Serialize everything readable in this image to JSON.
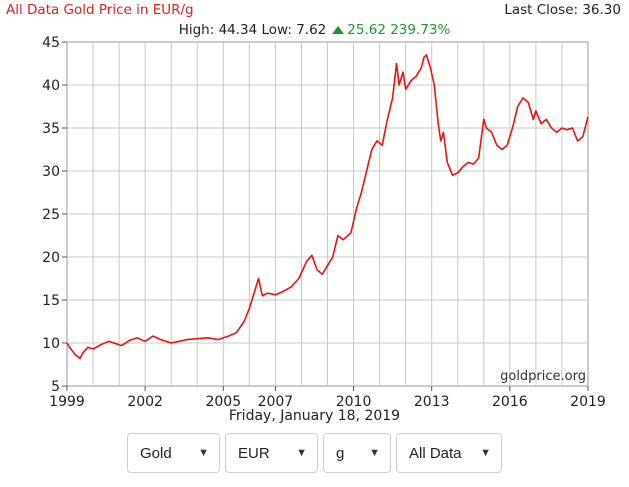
{
  "header": {
    "title": "All Data Gold Price in EUR/g",
    "last_close": "Last Close: 36.30",
    "high_low": "High: 44.34 Low: 7.62",
    "change": "25.62 239.73%"
  },
  "date_caption": "Friday, January 18, 2019",
  "selects": [
    {
      "value": "Gold"
    },
    {
      "value": "EUR"
    },
    {
      "value": "g"
    },
    {
      "value": "All Data"
    }
  ],
  "colors": {
    "line": "#ee1111",
    "title": "#e02020",
    "up": "#1a9a2a",
    "grid": "#c8c8c8"
  },
  "chart_data": {
    "type": "line",
    "title": "All Data Gold Price in EUR/g",
    "watermark": "goldprice.org",
    "xlim": [
      1999,
      2019
    ],
    "ylim": [
      5,
      45
    ],
    "x_ticks": [
      1999,
      2002,
      2005,
      2007,
      2010,
      2013,
      2016,
      2019
    ],
    "y_ticks": [
      5,
      10,
      15,
      20,
      25,
      30,
      35,
      40,
      45
    ],
    "grid": true,
    "series": [
      {
        "x": [
          1999.0,
          1999.1,
          1999.3,
          1999.5,
          1999.6,
          1999.8,
          2000.0,
          2000.3,
          2000.6,
          2000.9,
          2001.1,
          2001.4,
          2001.7,
          2002.0,
          2002.3,
          2002.6,
          2003.0,
          2003.3,
          2003.6,
          2004.0,
          2004.4,
          2004.8,
          2005.2,
          2005.5,
          2005.8,
          2006.0,
          2006.2,
          2006.35,
          2006.5,
          2006.7,
          2007.0,
          2007.3,
          2007.6,
          2007.9,
          2008.2,
          2008.4,
          2008.6,
          2008.8,
          2009.0,
          2009.2,
          2009.4,
          2009.6,
          2009.9,
          2010.1,
          2010.3,
          2010.5,
          2010.7,
          2010.9,
          2011.1,
          2011.3,
          2011.5,
          2011.65,
          2011.75,
          2011.9,
          2012.0,
          2012.2,
          2012.4,
          2012.6,
          2012.7,
          2012.8,
          2012.95,
          2013.1,
          2013.25,
          2013.35,
          2013.45,
          2013.6,
          2013.8,
          2014.0,
          2014.2,
          2014.4,
          2014.6,
          2014.8,
          2015.0,
          2015.1,
          2015.3,
          2015.5,
          2015.7,
          2015.9,
          2016.1,
          2016.3,
          2016.5,
          2016.7,
          2016.9,
          2017.0,
          2017.2,
          2017.4,
          2017.6,
          2017.8,
          2018.0,
          2018.2,
          2018.4,
          2018.6,
          2018.8,
          2019.0
        ],
        "y": [
          10.0,
          9.5,
          8.7,
          8.2,
          8.8,
          9.5,
          9.3,
          9.8,
          10.2,
          9.9,
          9.7,
          10.3,
          10.6,
          10.2,
          10.8,
          10.4,
          10.0,
          10.2,
          10.4,
          10.5,
          10.6,
          10.4,
          10.8,
          11.2,
          12.5,
          14.0,
          16.0,
          17.5,
          15.5,
          15.8,
          15.6,
          16.0,
          16.5,
          17.5,
          19.5,
          20.2,
          18.5,
          18.0,
          19.0,
          20.0,
          22.5,
          22.0,
          22.8,
          25.5,
          27.5,
          30.0,
          32.5,
          33.5,
          33.0,
          36.0,
          38.5,
          42.5,
          40.0,
          41.5,
          39.5,
          40.5,
          41.0,
          42.0,
          43.2,
          43.5,
          42.0,
          40.0,
          35.5,
          33.5,
          34.5,
          31.0,
          29.5,
          29.8,
          30.5,
          31.0,
          30.8,
          31.5,
          36.0,
          35.0,
          34.5,
          33.0,
          32.5,
          33.0,
          35.0,
          37.5,
          38.5,
          38.0,
          36.0,
          37.0,
          35.5,
          36.0,
          35.0,
          34.5,
          35.0,
          34.8,
          35.0,
          33.5,
          34.0,
          36.3
        ]
      }
    ]
  }
}
